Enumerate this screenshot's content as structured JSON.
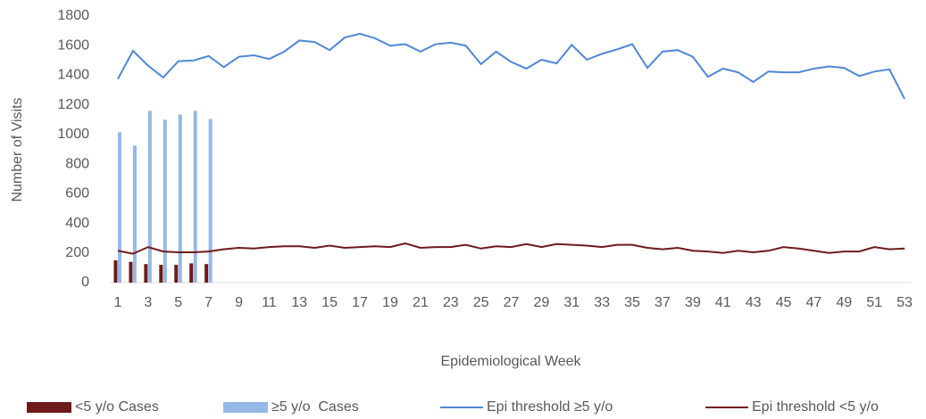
{
  "chart_data": {
    "type": "combo",
    "x_label": "Epidemiological Week",
    "y_label": "Number of Visits",
    "categories": [
      1,
      null,
      3,
      null,
      5,
      null,
      7,
      null,
      9,
      null,
      11,
      null,
      13,
      null,
      15,
      null,
      17,
      null,
      19,
      null,
      21,
      null,
      23,
      null,
      25,
      null,
      27,
      null,
      29,
      null,
      31,
      null,
      33,
      null,
      35,
      null,
      37,
      null,
      39,
      null,
      41,
      null,
      43,
      null,
      45,
      null,
      47,
      null,
      49,
      null,
      51,
      null,
      53
    ],
    "ylim": [
      0,
      1800
    ],
    "yticks": [
      0,
      200,
      400,
      600,
      800,
      1000,
      1200,
      1400,
      1600,
      1800
    ],
    "grid": false,
    "legend": "bottom",
    "series": [
      {
        "name": "<5 y/o Cases",
        "type": "bar",
        "color": "#6e1a1a",
        "values": [
          150,
          140,
          125,
          120,
          120,
          130,
          125,
          null,
          null,
          null,
          null,
          null,
          null,
          null,
          null,
          null,
          null,
          null,
          null,
          null,
          null,
          null,
          null,
          null,
          null,
          null,
          null,
          null,
          null,
          null,
          null,
          null,
          null,
          null,
          null,
          null,
          null,
          null,
          null,
          null,
          null,
          null,
          null,
          null,
          null,
          null,
          null,
          null,
          null,
          null,
          null,
          null,
          null
        ]
      },
      {
        "name": "≥5 y/o  Cases",
        "type": "bar",
        "color": "#95b8e6",
        "values": [
          1015,
          925,
          1160,
          1100,
          1135,
          1160,
          1105,
          null,
          null,
          null,
          null,
          null,
          null,
          null,
          null,
          null,
          null,
          null,
          null,
          null,
          null,
          null,
          null,
          null,
          null,
          null,
          null,
          null,
          null,
          null,
          null,
          null,
          null,
          null,
          null,
          null,
          null,
          null,
          null,
          null,
          null,
          null,
          null,
          null,
          null,
          null,
          null,
          null,
          null,
          null,
          null,
          null,
          null
        ]
      },
      {
        "name": "Epi threshold ≥5 y/o",
        "type": "line",
        "color": "#4f87d6",
        "values": [
          1375,
          1565,
          1465,
          1385,
          1495,
          1500,
          1530,
          1455,
          1525,
          1535,
          1510,
          1560,
          1635,
          1625,
          1570,
          1655,
          1680,
          1650,
          1600,
          1610,
          1560,
          1610,
          1620,
          1600,
          1475,
          1560,
          1490,
          1445,
          1505,
          1480,
          1605,
          1505,
          1545,
          1575,
          1610,
          1450,
          1560,
          1570,
          1525,
          1390,
          1445,
          1420,
          1355,
          1425,
          1420,
          1420,
          1445,
          1460,
          1450,
          1395,
          1425,
          1440,
          1240
        ]
      },
      {
        "name": "Epi threshold <5 y/o",
        "type": "line",
        "color": "#6e1a1a",
        "values": [
          215,
          195,
          240,
          210,
          205,
          205,
          210,
          225,
          235,
          230,
          240,
          245,
          245,
          235,
          250,
          235,
          240,
          245,
          240,
          265,
          235,
          240,
          240,
          255,
          230,
          245,
          240,
          260,
          240,
          260,
          255,
          250,
          240,
          255,
          255,
          235,
          225,
          235,
          215,
          210,
          200,
          215,
          205,
          215,
          240,
          230,
          215,
          200,
          210,
          210,
          240,
          225,
          230
        ]
      }
    ]
  }
}
